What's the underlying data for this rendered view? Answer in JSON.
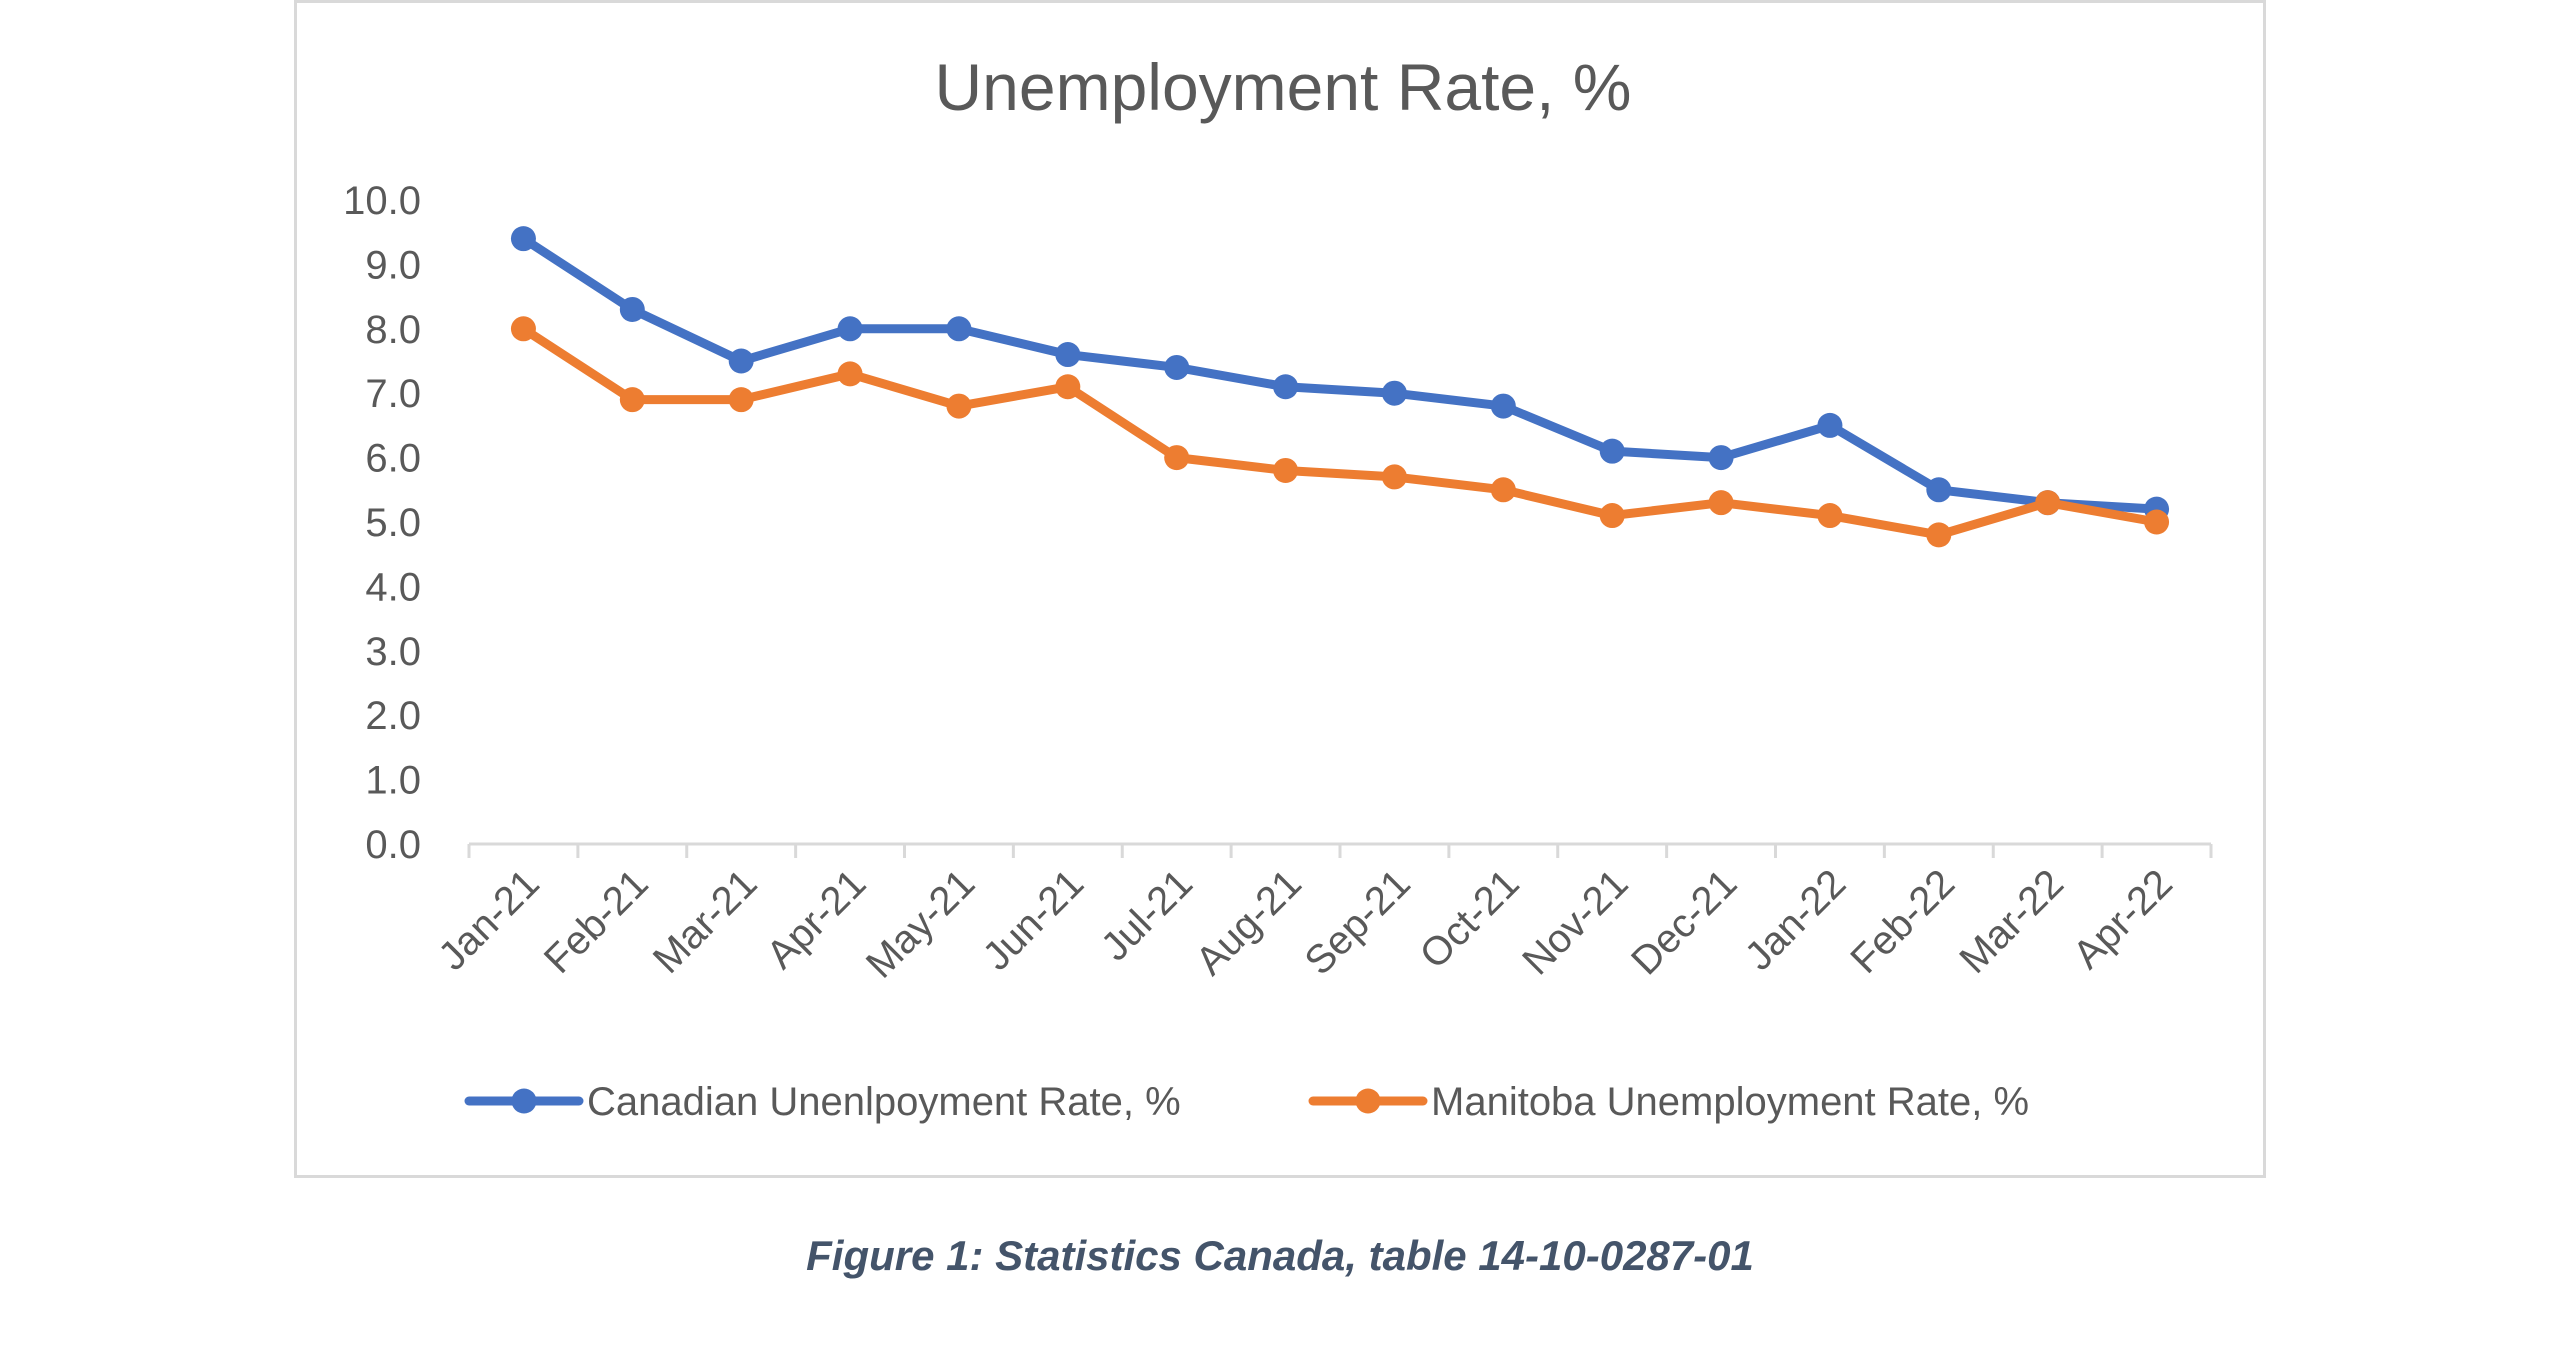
{
  "chart_data": {
    "type": "line",
    "title": "Unemployment Rate, %",
    "categories": [
      "Jan-21",
      "Feb-21",
      "Mar-21",
      "Apr-21",
      "May-21",
      "Jun-21",
      "Jul-21",
      "Aug-21",
      "Sep-21",
      "Oct-21",
      "Nov-21",
      "Dec-21",
      "Jan-22",
      "Feb-22",
      "Mar-22",
      "Apr-22"
    ],
    "series": [
      {
        "name": "Canadian Unenlpoyment Rate, %",
        "color": "#4472c4",
        "values": [
          9.4,
          8.3,
          7.5,
          8.0,
          8.0,
          7.6,
          7.4,
          7.1,
          7.0,
          6.8,
          6.1,
          6.0,
          6.5,
          5.5,
          5.3,
          5.2
        ]
      },
      {
        "name": "Manitoba Unemployment Rate, %",
        "color": "#ed7d31",
        "values": [
          8.0,
          6.9,
          6.9,
          7.3,
          6.8,
          7.1,
          6.0,
          5.8,
          5.7,
          5.5,
          5.1,
          5.3,
          5.1,
          4.8,
          5.3,
          5.0
        ]
      }
    ],
    "ylim": [
      0,
      10
    ],
    "yticks": [
      "0.0",
      "1.0",
      "2.0",
      "3.0",
      "4.0",
      "5.0",
      "6.0",
      "7.0",
      "8.0",
      "9.0",
      "10.0"
    ],
    "grid": false,
    "legend": "bottom"
  },
  "caption": "Figure 1: Statistics Canada, table 14-10-0287-01"
}
